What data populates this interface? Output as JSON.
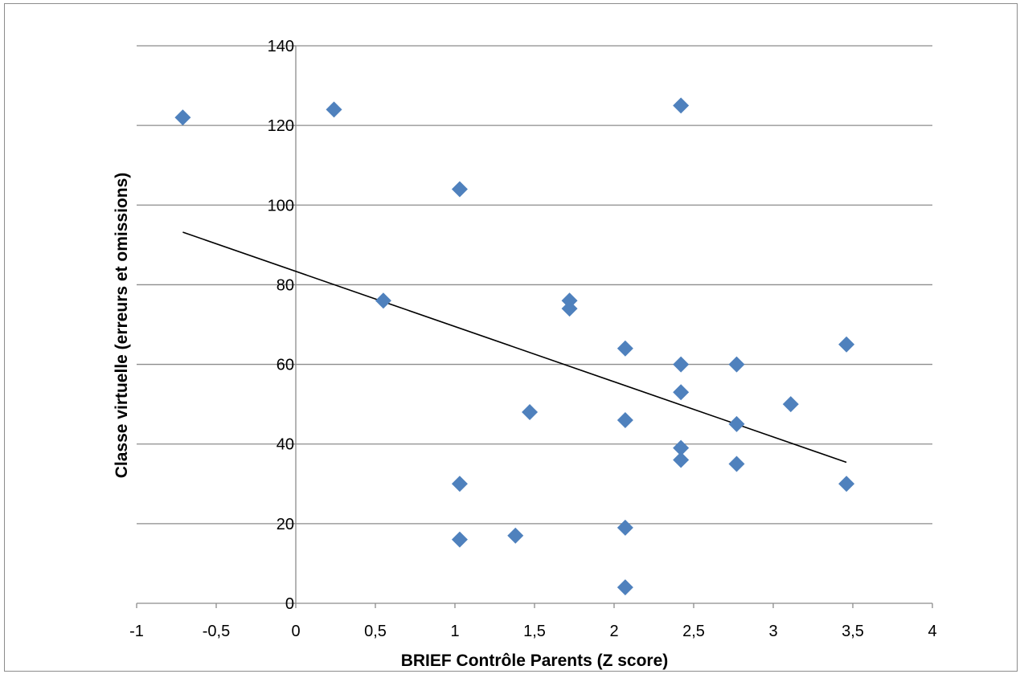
{
  "chart_data": {
    "type": "scatter",
    "title": "",
    "xlabel": "BRIEF Contrôle Parents (Z score)",
    "ylabel": "Classe virtuelle (erreurs et omissions)",
    "xlim": [
      -1,
      4
    ],
    "ylim": [
      0,
      140
    ],
    "x_ticks": [
      -1,
      -0.5,
      0,
      0.5,
      1,
      1.5,
      2,
      2.5,
      3,
      3.5,
      4
    ],
    "x_tick_labels": [
      "-1",
      "-0,5",
      "0",
      "0,5",
      "1",
      "1,5",
      "2",
      "2,5",
      "3",
      "3,5",
      "4"
    ],
    "y_ticks": [
      0,
      20,
      40,
      60,
      80,
      100,
      120,
      140
    ],
    "y_tick_labels": [
      "0",
      "20",
      "40",
      "60",
      "80",
      "100",
      "120",
      "140"
    ],
    "grid": "horizontal",
    "legend": "none",
    "marker_color": "#4f81bd",
    "trendline_color": "#000000",
    "series": [
      {
        "points": [
          {
            "x": -0.71,
            "y": 122
          },
          {
            "x": 0.24,
            "y": 124
          },
          {
            "x": 0.55,
            "y": 76
          },
          {
            "x": 1.03,
            "y": 104
          },
          {
            "x": 1.03,
            "y": 30
          },
          {
            "x": 1.03,
            "y": 16
          },
          {
            "x": 1.38,
            "y": 17
          },
          {
            "x": 1.47,
            "y": 48
          },
          {
            "x": 1.72,
            "y": 76
          },
          {
            "x": 1.72,
            "y": 74
          },
          {
            "x": 2.07,
            "y": 64
          },
          {
            "x": 2.07,
            "y": 46
          },
          {
            "x": 2.07,
            "y": 19
          },
          {
            "x": 2.07,
            "y": 4
          },
          {
            "x": 2.42,
            "y": 125
          },
          {
            "x": 2.42,
            "y": 60
          },
          {
            "x": 2.42,
            "y": 53
          },
          {
            "x": 2.42,
            "y": 39
          },
          {
            "x": 2.42,
            "y": 36
          },
          {
            "x": 2.77,
            "y": 60
          },
          {
            "x": 2.77,
            "y": 45
          },
          {
            "x": 2.77,
            "y": 35
          },
          {
            "x": 3.11,
            "y": 50
          },
          {
            "x": 3.46,
            "y": 65
          },
          {
            "x": 3.46,
            "y": 30
          }
        ]
      }
    ],
    "trendline": {
      "x": [
        -0.71,
        3.46
      ],
      "y": [
        93.2,
        35.4
      ]
    }
  }
}
